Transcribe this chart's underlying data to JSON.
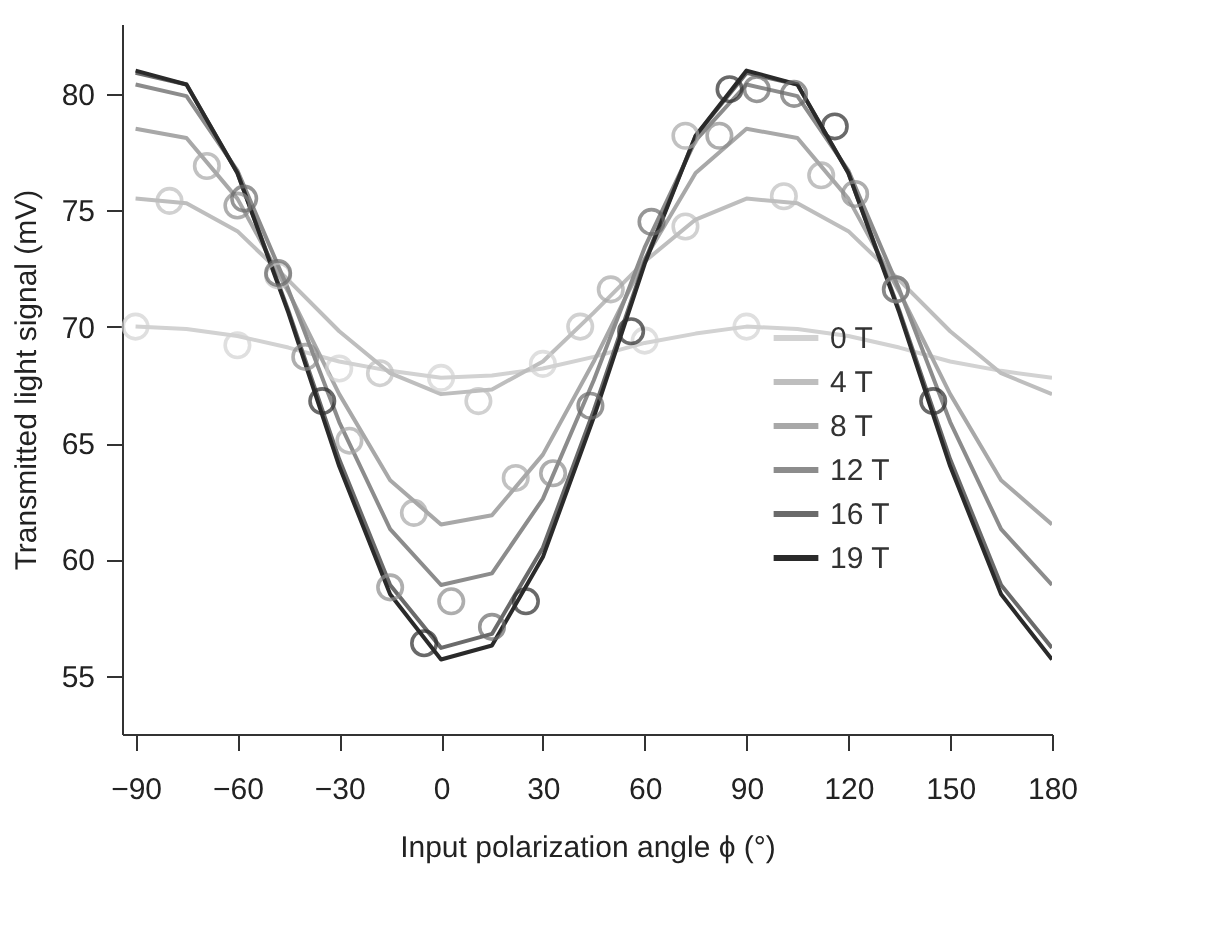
{
  "chart_data": {
    "type": "line",
    "xlabel": "Input polarization angle ϕ (°)",
    "ylabel": "Transmitted light signal (mV)",
    "xlim": [
      -94,
      180
    ],
    "xticks": [
      -90,
      -60,
      -30,
      0,
      30,
      60,
      90,
      120,
      150,
      180
    ],
    "ylim": [
      52.5,
      83
    ],
    "yticks": [
      55,
      60,
      65,
      70,
      75,
      80
    ],
    "grid": false,
    "legend": "bottom right",
    "line_style": "solid",
    "x": [
      -90,
      -75,
      -60,
      -45,
      -30,
      -15,
      0,
      15,
      30,
      45,
      60,
      75,
      90,
      105,
      120,
      135,
      150,
      165,
      180
    ],
    "series": [
      {
        "name": "0 T",
        "type": "line",
        "marker": "none",
        "color": "#d2d2d2",
        "values": [
          70.0,
          69.9,
          69.6,
          69.1,
          68.5,
          68.1,
          67.8,
          67.9,
          68.2,
          68.7,
          69.3,
          69.7,
          70.0,
          69.9,
          69.6,
          69.1,
          68.5,
          68.1,
          67.8
        ]
      },
      {
        "name": "4 T",
        "type": "line",
        "marker": "none",
        "color": "#bebebe",
        "values": [
          75.5,
          75.3,
          74.1,
          72.0,
          69.8,
          68.0,
          67.1,
          67.3,
          68.5,
          70.6,
          72.8,
          74.6,
          75.5,
          75.3,
          74.1,
          72.0,
          69.8,
          68.0,
          67.1
        ]
      },
      {
        "name": "8 T",
        "type": "line",
        "marker": "none",
        "color": "#a8a8a8",
        "values": [
          78.5,
          78.1,
          75.5,
          71.5,
          67.1,
          63.4,
          61.5,
          61.9,
          64.5,
          68.5,
          72.9,
          76.6,
          78.5,
          78.1,
          75.5,
          71.5,
          67.1,
          63.4,
          61.5
        ]
      },
      {
        "name": "12 T",
        "type": "line",
        "marker": "none",
        "color": "#8c8c8c",
        "values": [
          80.4,
          79.9,
          76.7,
          71.6,
          65.9,
          61.3,
          58.9,
          59.4,
          62.6,
          67.7,
          73.4,
          78.0,
          80.4,
          79.9,
          76.7,
          71.6,
          65.9,
          61.3,
          58.9
        ]
      },
      {
        "name": "16 T",
        "type": "line",
        "marker": "none",
        "color": "#6a6a6a",
        "values": [
          80.9,
          80.4,
          76.6,
          70.7,
          64.3,
          58.9,
          56.2,
          56.8,
          60.5,
          66.4,
          72.8,
          78.2,
          80.9,
          80.4,
          76.6,
          70.7,
          64.3,
          58.9,
          56.2
        ]
      },
      {
        "name": "19 T",
        "type": "line",
        "marker": "none",
        "color": "#2a2a2a",
        "values": [
          81.0,
          80.4,
          76.6,
          70.6,
          64.0,
          58.5,
          55.7,
          56.3,
          60.1,
          66.1,
          72.7,
          78.2,
          81.0,
          80.4,
          76.6,
          70.6,
          64.0,
          58.5,
          55.7
        ]
      },
      {
        "type": "scatter",
        "marker": "circle",
        "color": "#d2d2d2",
        "x": [
          -90,
          -60,
          -30,
          0,
          30,
          60,
          90
        ],
        "values": [
          70.0,
          69.2,
          68.2,
          67.8,
          68.4,
          69.4,
          70.0
        ]
      },
      {
        "type": "scatter",
        "marker": "circle",
        "color": "#bebebe",
        "x": [
          -80,
          -48,
          -18,
          11,
          41,
          72,
          101,
          134
        ],
        "values": [
          75.4,
          72.2,
          68.0,
          66.8,
          70.0,
          74.3,
          75.6,
          71.6
        ]
      },
      {
        "type": "scatter",
        "marker": "circle",
        "color": "#a8a8a8",
        "x": [
          -69,
          -27,
          -8,
          22,
          50,
          72,
          112
        ],
        "values": [
          76.9,
          65.1,
          62.0,
          63.5,
          71.6,
          78.2,
          76.5
        ]
      },
      {
        "type": "scatter",
        "marker": "circle",
        "color": "#8c8c8c",
        "x": [
          -60,
          -40,
          -15,
          3,
          33,
          82,
          122
        ],
        "values": [
          75.2,
          68.7,
          58.8,
          58.2,
          63.7,
          78.2,
          75.7
        ]
      },
      {
        "type": "scatter",
        "marker": "circle",
        "color": "#6a6a6a",
        "x": [
          -58,
          -48,
          15,
          44,
          62,
          93,
          104,
          134
        ],
        "values": [
          75.5,
          72.3,
          57.1,
          66.6,
          74.5,
          80.2,
          80.0,
          71.6
        ]
      },
      {
        "type": "scatter",
        "marker": "circle",
        "color": "#2a2a2a",
        "x": [
          -35,
          -5,
          25,
          56,
          85,
          116,
          145
        ],
        "values": [
          66.8,
          56.4,
          58.2,
          69.8,
          80.2,
          78.6,
          66.8
        ]
      }
    ]
  }
}
